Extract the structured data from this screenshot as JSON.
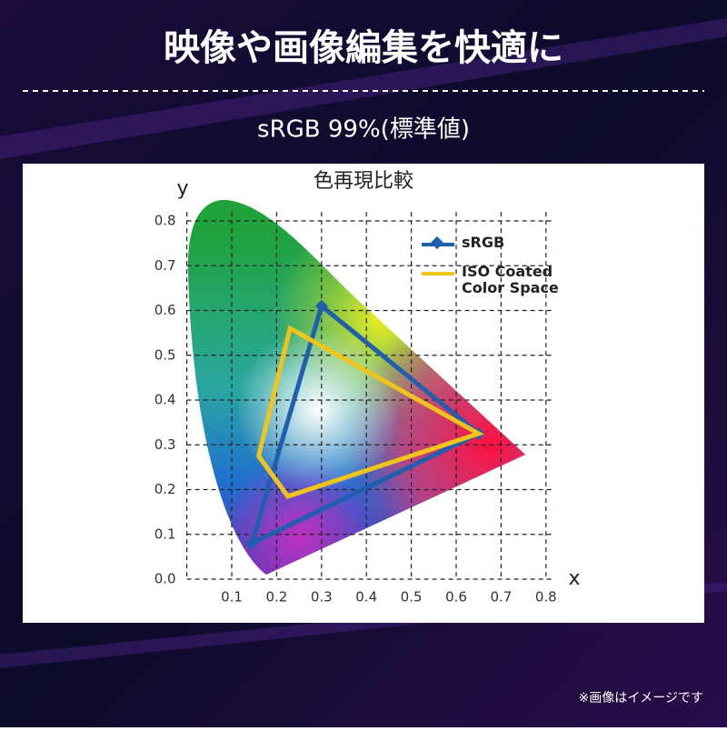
{
  "header": {
    "title": "映像や画像編集を快適に",
    "subtitle": "sRGB 99%(標準値)"
  },
  "footer": {
    "note": "※画像はイメージです"
  },
  "chart_data": {
    "type": "line",
    "title": "色再現比較",
    "x_label": "x",
    "y_label": "y",
    "xlim": [
      0,
      0.82
    ],
    "ylim": [
      0,
      0.82
    ],
    "xticks": [
      0.1,
      0.2,
      0.3,
      0.4,
      0.5,
      0.6,
      0.7,
      0.8
    ],
    "yticks": [
      {
        "value": 0,
        "label": "0.0"
      },
      0.1,
      0.2,
      0.3,
      0.4,
      0.5,
      0.6,
      0.7,
      0.8
    ],
    "grid": true,
    "legend": "upper right",
    "series": [
      {
        "name": "sRGB",
        "color": "#1f5fae",
        "marker": "diamond",
        "x": [
          0.3,
          0.65,
          0.145
        ],
        "values": [
          0.61,
          0.325,
          0.08
        ]
      },
      {
        "name": "ISO Coated Color Space",
        "color": "#f0c419",
        "x": [
          0.23,
          0.65,
          0.225,
          0.16
        ],
        "values": [
          0.56,
          0.325,
          0.185,
          0.275
        ]
      }
    ]
  }
}
